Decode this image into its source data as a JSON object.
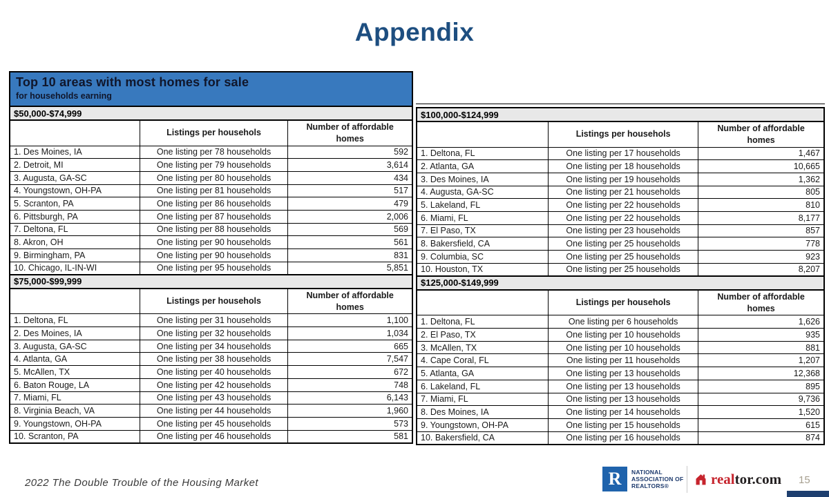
{
  "page": {
    "title": "Appendix",
    "footer": {
      "source_text": "2022 The Double Trouble of the Housing Market",
      "page_number": "15",
      "nar_line1": "NATIONAL",
      "nar_line2": "ASSOCIATION OF",
      "nar_line3": "REALTORS®",
      "nar_letter": "R",
      "realtor_red": "real",
      "realtor_black": "tor.com"
    }
  },
  "header_block": {
    "title": "Top 10 areas with most homes for sale",
    "subtitle": "for households earning"
  },
  "column_headers": {
    "area": "",
    "listings": "Listings per househols",
    "homes": "Number of affordable homes"
  },
  "colors": {
    "accent_blue": "#3879be",
    "title_blue": "#1d4e80",
    "band_gray": "#e8e8e8",
    "navy_bar": "#1e3f6f",
    "realtor_red": "#c6242d",
    "nar_blue": "#1f63ac"
  },
  "tables": [
    {
      "income_band": "$50,000-$74,999",
      "position": "top-left",
      "rows": [
        {
          "area": "1. Des Moines, IA",
          "listings": "One listing per 78 households",
          "homes": "592"
        },
        {
          "area": "2. Detroit, MI",
          "listings": "One listing per 79 households",
          "homes": "3,614"
        },
        {
          "area": "3. Augusta, GA-SC",
          "listings": "One listing per 80 households",
          "homes": "434"
        },
        {
          "area": "4. Youngstown, OH-PA",
          "listings": "One listing per 81 households",
          "homes": "517"
        },
        {
          "area": "5. Scranton, PA",
          "listings": "One listing per 86 households",
          "homes": "479"
        },
        {
          "area": "6. Pittsburgh, PA",
          "listings": "One listing per 87 households",
          "homes": "2,006"
        },
        {
          "area": "7. Deltona, FL",
          "listings": "One listing per 88 households",
          "homes": "569"
        },
        {
          "area": "8. Akron, OH",
          "listings": "One listing per 90 households",
          "homes": "561"
        },
        {
          "area": "9. Birmingham, PA",
          "listings": "One listing per 90 households",
          "homes": "831"
        },
        {
          "area": "10. Chicago, IL-IN-WI",
          "listings": "One listing per 95 households",
          "homes": "5,851"
        }
      ]
    },
    {
      "income_band": "$100,000-$124,999",
      "position": "top-right",
      "rows": [
        {
          "area": "1. Deltona, FL",
          "listings": "One listing per 17 households",
          "homes": "1,467"
        },
        {
          "area": "2. Atlanta, GA",
          "listings": "One listing per 18 households",
          "homes": "10,665"
        },
        {
          "area": "3. Des Moines, IA",
          "listings": "One listing per 19 households",
          "homes": "1,362"
        },
        {
          "area": "4. Augusta, GA-SC",
          "listings": "One listing per 21 households",
          "homes": "805"
        },
        {
          "area": "5. Lakeland, FL",
          "listings": "One listing per 22 households",
          "homes": "810"
        },
        {
          "area": "6. Miami, FL",
          "listings": "One listing per 22 households",
          "homes": "8,177"
        },
        {
          "area": "7. El Paso, TX",
          "listings": "One listing per 23 households",
          "homes": "857"
        },
        {
          "area": "8. Bakersfield, CA",
          "listings": "One listing per 25 households",
          "homes": "778"
        },
        {
          "area": "9. Columbia, SC",
          "listings": "One listing per 25 households",
          "homes": "923"
        },
        {
          "area": "10. Houston, TX",
          "listings": "One listing per 25 households",
          "homes": "8,207"
        }
      ]
    },
    {
      "income_band": "$75,000-$99,999",
      "position": "bottom-left",
      "rows": [
        {
          "area": "1. Deltona, FL",
          "listings": "One listing per 31 households",
          "homes": "1,100"
        },
        {
          "area": "2. Des Moines, IA",
          "listings": "One listing per 32 households",
          "homes": "1,034"
        },
        {
          "area": "3. Augusta, GA-SC",
          "listings": "One listing per 34 households",
          "homes": "665"
        },
        {
          "area": "4. Atlanta, GA",
          "listings": "One listing per 38 households",
          "homes": "7,547"
        },
        {
          "area": "5. McAllen, TX",
          "listings": "One listing per 40 households",
          "homes": "672"
        },
        {
          "area": "6. Baton Rouge, LA",
          "listings": "One listing per 42 households",
          "homes": "748"
        },
        {
          "area": "7. Miami, FL",
          "listings": "One listing per 43 households",
          "homes": "6,143"
        },
        {
          "area": "8. Virginia Beach, VA",
          "listings": "One listing per 44 households",
          "homes": "1,960"
        },
        {
          "area": "9. Youngstown, OH-PA",
          "listings": "One listing per 45 households",
          "homes": "573"
        },
        {
          "area": "10. Scranton, PA",
          "listings": "One listing per 46 households",
          "homes": "581"
        }
      ]
    },
    {
      "income_band": "$125,000-$149,999",
      "position": "bottom-right",
      "rows": [
        {
          "area": "1. Deltona, FL",
          "listings": "One listing per 6 households",
          "homes": "1,626"
        },
        {
          "area": "2. El Paso, TX",
          "listings": "One listing per 10 households",
          "homes": "935"
        },
        {
          "area": "3. McAllen, TX",
          "listings": "One listing per 10 households",
          "homes": "881"
        },
        {
          "area": "4. Cape Coral, FL",
          "listings": "One listing per 11 households",
          "homes": "1,207"
        },
        {
          "area": "5. Atlanta, GA",
          "listings": "One listing per 13 households",
          "homes": "12,368"
        },
        {
          "area": "6. Lakeland, FL",
          "listings": "One listing per 13 households",
          "homes": "895"
        },
        {
          "area": "7. Miami, FL",
          "listings": "One listing per 13 households",
          "homes": "9,736"
        },
        {
          "area": "8. Des Moines, IA",
          "listings": "One listing per 14 households",
          "homes": "1,520"
        },
        {
          "area": "9. Youngstown, OH-PA",
          "listings": "One listing per 15 households",
          "homes": "615"
        },
        {
          "area": "10. Bakersfield, CA",
          "listings": "One listing per 16 households",
          "homes": "874"
        }
      ]
    }
  ]
}
